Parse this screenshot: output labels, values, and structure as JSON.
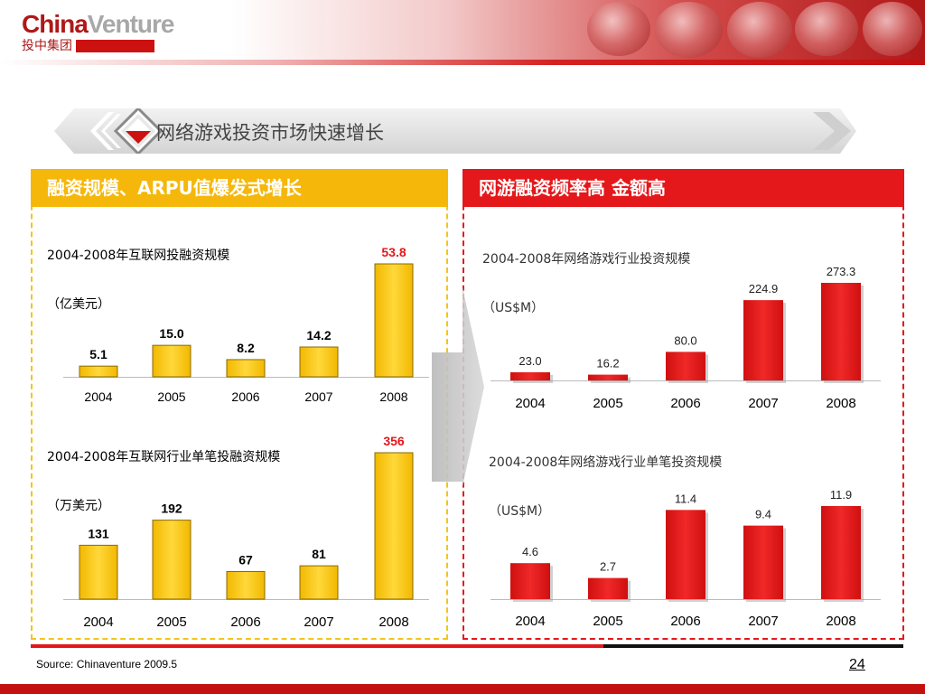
{
  "logo": {
    "brand_part1": "China",
    "brand_part2": "Venture",
    "subtitle_cn": "投中集团"
  },
  "title": "网络游戏投资市场快速增长",
  "left_panel": {
    "heading": "融资规模、ARPU值爆发式增长",
    "chart1_title_line1": "2004-2008年互联网投融资规模",
    "chart1_title_line2": "（亿美元）",
    "chart2_title_line1": "2004-2008年互联网行业单笔投融资规模",
    "chart2_title_line2": "（万美元）"
  },
  "right_panel": {
    "heading": "网游融资频率高 金额高",
    "chart3_title_line1": "2004-2008年网络游戏行业投资规模",
    "chart3_title_line2": "（US$M）",
    "chart4_title_line1": "2004-2008年网络游戏行业单笔投资规模",
    "chart4_title_line2": "（US$M）"
  },
  "colors": {
    "yellow": "#f5b70a",
    "bar_yellow": "#ffcc00",
    "red": "#e4171a",
    "highlight_label": "#e4171a"
  },
  "chart_data": [
    {
      "id": "c1",
      "type": "bar",
      "categories": [
        "2004",
        "2005",
        "2006",
        "2007",
        "2008"
      ],
      "values": [
        5.1,
        15.0,
        8.2,
        14.2,
        53.8
      ],
      "labels": [
        "5.1",
        "15.0",
        "8.2",
        "14.2",
        "53.8"
      ],
      "highlight_last": true,
      "ylim": [
        0,
        55
      ]
    },
    {
      "id": "c2",
      "type": "bar",
      "categories": [
        "2004",
        "2005",
        "2006",
        "2007",
        "2008"
      ],
      "values": [
        131,
        192,
        67,
        81,
        356
      ],
      "labels": [
        "131",
        "192",
        "67",
        "81",
        "356"
      ],
      "highlight_last": true,
      "ylim": [
        0,
        360
      ]
    },
    {
      "id": "c3",
      "type": "bar",
      "categories": [
        "2004",
        "2005",
        "2006",
        "2007",
        "2008"
      ],
      "values": [
        23.0,
        16.2,
        80.0,
        224.9,
        273.3
      ],
      "labels": [
        "23.0",
        "16.2",
        "80.0",
        "224.9",
        "273.3"
      ],
      "ylim": [
        0,
        300
      ]
    },
    {
      "id": "c4",
      "type": "bar",
      "categories": [
        "2004",
        "2005",
        "2006",
        "2007",
        "2008"
      ],
      "values": [
        4.6,
        2.7,
        11.4,
        9.4,
        11.9
      ],
      "labels": [
        "4.6",
        "2.7",
        "11.4",
        "9.4",
        "11.9"
      ],
      "ylim": [
        0,
        13
      ]
    }
  ],
  "footer": {
    "source": "Source:  Chinaventure 2009.5",
    "page_number": "24"
  }
}
